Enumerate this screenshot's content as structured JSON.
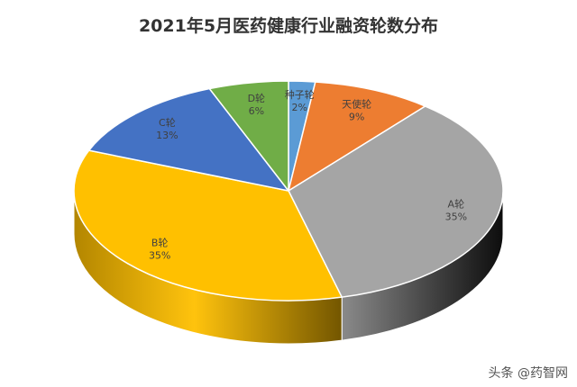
{
  "watermark": "头条 @药智网",
  "chart_data": {
    "type": "pie",
    "style": "3d",
    "title": "2021年5月医药健康行业融资轮数分布",
    "slices": [
      {
        "label": "种子轮",
        "value": 2,
        "value_label": "2%",
        "color": "#5B9BD5"
      },
      {
        "label": "天使轮",
        "value": 9,
        "value_label": "9%",
        "color": "#ED7D31"
      },
      {
        "label": "A轮",
        "value": 35,
        "value_label": "35%",
        "color": "#A5A5A5"
      },
      {
        "label": "B轮",
        "value": 35,
        "value_label": "35%",
        "color": "#FFC000"
      },
      {
        "label": "C轮",
        "value": 13,
        "value_label": "13%",
        "color": "#4472C4"
      },
      {
        "label": "D轮",
        "value": 6,
        "value_label": "6%",
        "color": "#70AD47"
      }
    ]
  }
}
